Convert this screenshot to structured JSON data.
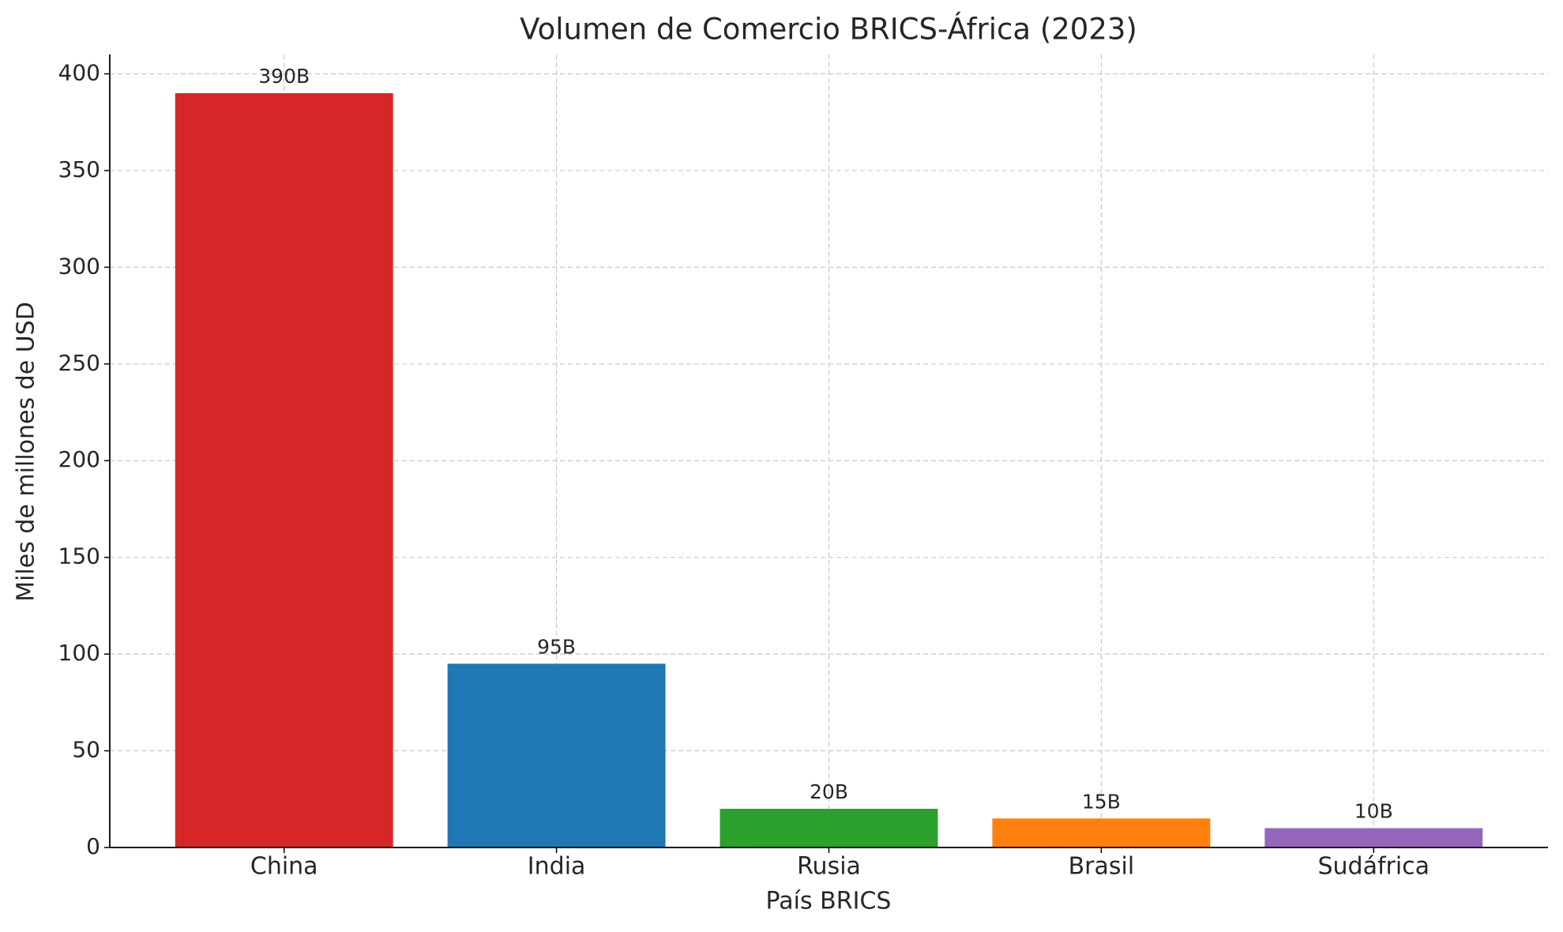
{
  "chart_data": {
    "type": "bar",
    "title": "Volumen de Comercio BRICS-África (2023)",
    "x_label": "País BRICS",
    "y_label": "Miles de millones de USD",
    "categories": [
      "China",
      "India",
      "Rusia",
      "Brasil",
      "Sudáfrica"
    ],
    "values": [
      390,
      95,
      20,
      15,
      10
    ],
    "value_labels": [
      "390B",
      "95B",
      "20B",
      "15B",
      "10B"
    ],
    "colors": [
      "#d62728",
      "#1f77b4",
      "#2ca02c",
      "#ff7f0e",
      "#9467bd"
    ],
    "ylim": [
      0,
      410
    ],
    "yticks": [
      0,
      50,
      100,
      150,
      200,
      250,
      300,
      350,
      400
    ],
    "grid": true
  }
}
